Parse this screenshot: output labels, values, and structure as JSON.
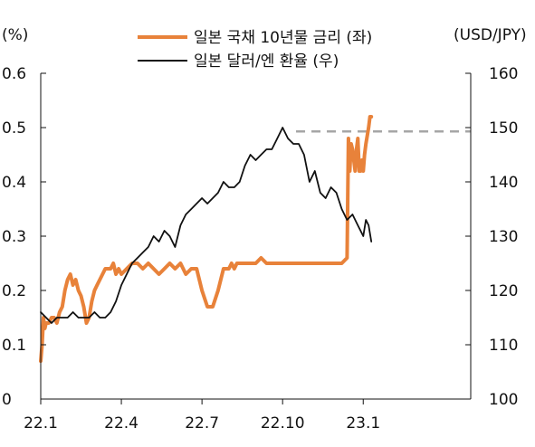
{
  "chart_data": {
    "type": "line",
    "title": "",
    "left_axis": {
      "unit": "(%)",
      "ylim": [
        0,
        0.6
      ],
      "ticks": [
        "0",
        "0.1",
        "0.2",
        "0.3",
        "0.4",
        "0.5",
        "0.6"
      ]
    },
    "right_axis": {
      "unit": "(USD/JPY)",
      "ylim": [
        100,
        160
      ],
      "ticks": [
        "100",
        "110",
        "120",
        "130",
        "140",
        "150",
        "160"
      ]
    },
    "x_axis": {
      "xlim": [
        0,
        16
      ],
      "ticks": [
        {
          "x": 0,
          "label": "22.1"
        },
        {
          "x": 3,
          "label": "22.4"
        },
        {
          "x": 6,
          "label": "22.7"
        },
        {
          "x": 9,
          "label": "22.10"
        },
        {
          "x": 12,
          "label": "23.1"
        }
      ]
    },
    "legend": {
      "position": "top-center"
    },
    "series": [
      {
        "name": "일본 국채 10년물 금리 (좌)",
        "axis": "left",
        "color": "#e8823a",
        "x": [
          0,
          0.05,
          0.1,
          0.15,
          0.2,
          0.25,
          0.3,
          0.4,
          0.5,
          0.6,
          0.7,
          0.8,
          0.9,
          1.0,
          1.1,
          1.2,
          1.3,
          1.4,
          1.5,
          1.6,
          1.7,
          1.8,
          1.9,
          2.0,
          2.1,
          2.2,
          2.3,
          2.4,
          2.5,
          2.6,
          2.7,
          2.8,
          2.9,
          3.0,
          3.2,
          3.4,
          3.6,
          3.8,
          4.0,
          4.2,
          4.4,
          4.6,
          4.8,
          5.0,
          5.2,
          5.4,
          5.6,
          5.8,
          6.0,
          6.2,
          6.4,
          6.6,
          6.8,
          7.0,
          7.1,
          7.2,
          7.3,
          7.4,
          7.6,
          7.8,
          8.0,
          8.2,
          8.4,
          8.6,
          8.8,
          9.0,
          9.2,
          9.4,
          9.6,
          9.8,
          10.0,
          10.2,
          10.4,
          10.6,
          10.8,
          11.0,
          11.2,
          11.4,
          11.45,
          11.5,
          11.55,
          11.6,
          11.7,
          11.75,
          11.8,
          11.85,
          11.9,
          11.95,
          12.0,
          12.05,
          12.1,
          12.2,
          12.25,
          12.3
        ],
        "values": [
          0.07,
          0.1,
          0.15,
          0.13,
          0.14,
          0.14,
          0.14,
          0.15,
          0.15,
          0.14,
          0.16,
          0.17,
          0.2,
          0.22,
          0.23,
          0.21,
          0.22,
          0.2,
          0.19,
          0.17,
          0.14,
          0.15,
          0.18,
          0.2,
          0.21,
          0.22,
          0.23,
          0.24,
          0.24,
          0.24,
          0.25,
          0.23,
          0.24,
          0.23,
          0.24,
          0.25,
          0.25,
          0.24,
          0.25,
          0.24,
          0.23,
          0.24,
          0.25,
          0.24,
          0.25,
          0.23,
          0.24,
          0.24,
          0.2,
          0.17,
          0.17,
          0.2,
          0.24,
          0.24,
          0.25,
          0.24,
          0.25,
          0.25,
          0.25,
          0.25,
          0.25,
          0.26,
          0.25,
          0.25,
          0.25,
          0.25,
          0.25,
          0.25,
          0.25,
          0.25,
          0.25,
          0.25,
          0.25,
          0.25,
          0.25,
          0.25,
          0.25,
          0.26,
          0.48,
          0.42,
          0.47,
          0.46,
          0.42,
          0.46,
          0.48,
          0.42,
          0.42,
          0.44,
          0.42,
          0.45,
          0.47,
          0.5,
          0.52,
          0.52
        ]
      },
      {
        "name": "일본 달러/엔 환율 (우)",
        "axis": "right",
        "color": "#111111",
        "x": [
          0,
          0.2,
          0.4,
          0.6,
          0.8,
          1.0,
          1.2,
          1.4,
          1.6,
          1.8,
          2.0,
          2.2,
          2.4,
          2.6,
          2.8,
          3.0,
          3.2,
          3.4,
          3.6,
          3.8,
          4.0,
          4.2,
          4.4,
          4.6,
          4.8,
          5.0,
          5.2,
          5.4,
          5.6,
          5.8,
          6.0,
          6.2,
          6.4,
          6.6,
          6.8,
          7.0,
          7.2,
          7.4,
          7.6,
          7.8,
          8.0,
          8.2,
          8.4,
          8.6,
          8.8,
          9.0,
          9.2,
          9.4,
          9.6,
          9.8,
          10.0,
          10.2,
          10.4,
          10.6,
          10.8,
          11.0,
          11.2,
          11.4,
          11.6,
          11.8,
          12.0,
          12.1,
          12.2,
          12.3
        ],
        "values": [
          116,
          115,
          114,
          115,
          115,
          115,
          116,
          115,
          115,
          115,
          116,
          115,
          115,
          116,
          118,
          121,
          123,
          125,
          126,
          127,
          128,
          130,
          129,
          131,
          130,
          128,
          132,
          134,
          135,
          136,
          137,
          136,
          137,
          138,
          140,
          139,
          139,
          140,
          143,
          145,
          144,
          145,
          146,
          146,
          148,
          150,
          148,
          147,
          147,
          145,
          140,
          142,
          138,
          137,
          139,
          138,
          135,
          133,
          134,
          132,
          130,
          133,
          132,
          129
        ]
      }
    ],
    "reference_line": {
      "axis": "right",
      "y": 149.3,
      "x_range": [
        9.5,
        16
      ],
      "style": "dashed",
      "color": "#a6a6a6"
    }
  }
}
